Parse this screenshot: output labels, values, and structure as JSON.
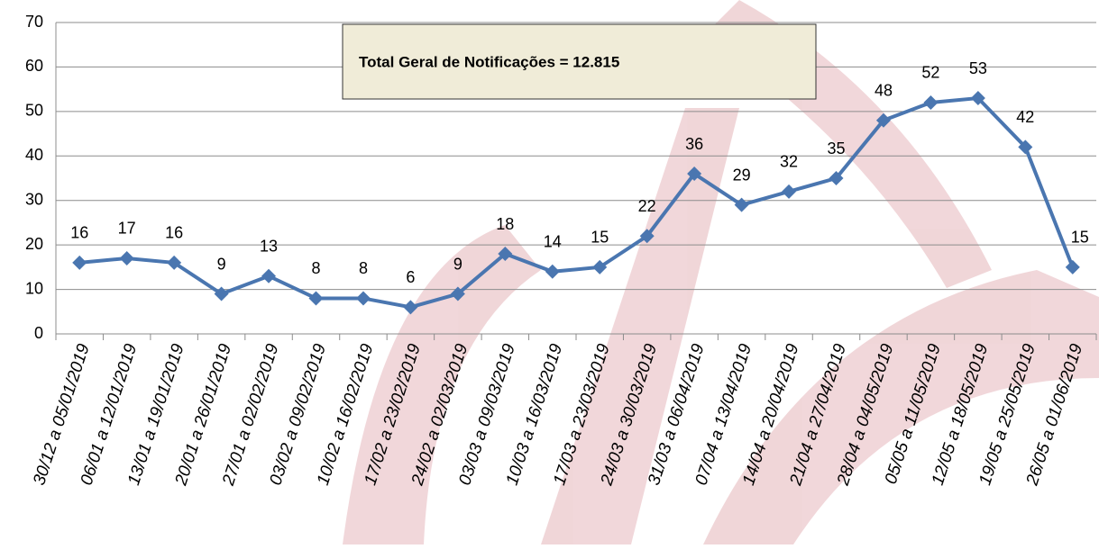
{
  "chart_data": {
    "type": "line",
    "annotation": "Total Geral de Notificações = 12.815",
    "categories": [
      "30/12 a 05/01/2019",
      "06/01 a 12/01/2019",
      "13/01 a 19/01/2019",
      "20/01 a 26/01/2019",
      "27/01 a 02/02/2019",
      "03/02 a 09/02/2019",
      "10/02 a 16/02/2019",
      "17/02 a 23/02/2019",
      "24/02 a 02/03/2019",
      "03/03 a 09/03/2019",
      "10/03 a 16/03/2019",
      "17/03 a 23/03/2019",
      "24/03 a 30/03/2019",
      "31/03 a 06/04/2019",
      "07/04 a 13/04/2019",
      "14/04 a 20/04/2019",
      "21/04 a 27/04/2019",
      "28/04 a 04/05/2019",
      "05/05 a 11/05/2019",
      "12/05 a 18/05/2019",
      "19/05 a 25/05/2019",
      "26/05 a 01/06/2019"
    ],
    "values": [
      16,
      17,
      16,
      9,
      13,
      8,
      8,
      6,
      9,
      18,
      14,
      15,
      22,
      36,
      29,
      32,
      35,
      48,
      52,
      53,
      42,
      15
    ],
    "color": "#4a76b0",
    "ylim": [
      0,
      70
    ],
    "yticks": [
      0,
      10,
      20,
      30,
      40,
      50,
      60,
      70
    ],
    "grid": true
  }
}
